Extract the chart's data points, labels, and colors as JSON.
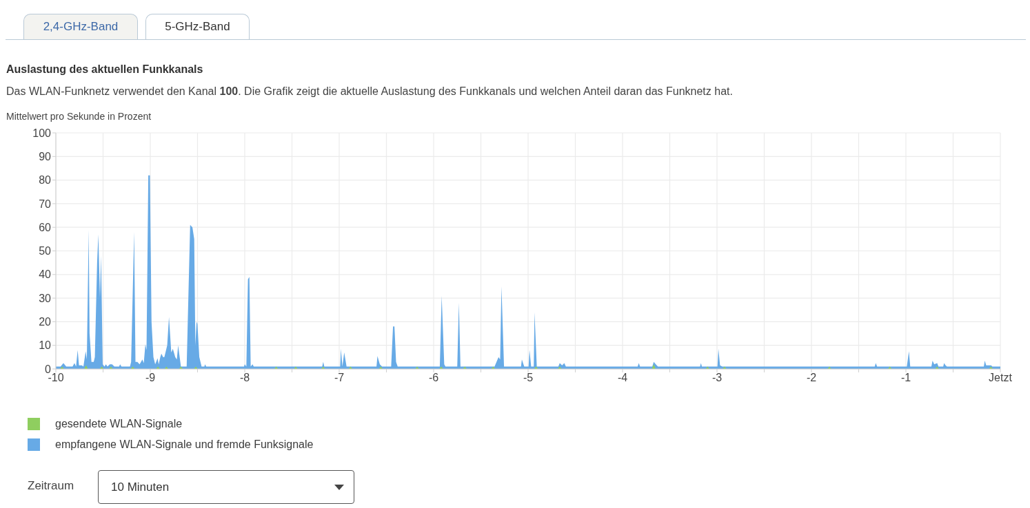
{
  "chart_data": {
    "type": "area",
    "title": "Auslastung des aktuellen Funkkanals",
    "subtitle": "Das WLAN-Funknetz verwendet den Kanal 100. Die Grafik zeigt die aktuelle Auslastung des Funkkanals und welchen Anteil daran das Funknetz hat.",
    "ylabel": "Mittelwert pro Sekunde in Prozent",
    "annotations": [
      "2,4-GHz-Band",
      "5-GHz-Band",
      "Zeitraum",
      "10 Minuten"
    ],
    "xlim": [
      -10,
      0
    ],
    "xticks": [
      -10,
      {
        "value": -9.5,
        "label": null
      },
      -9,
      {
        "value": -8.5,
        "label": null
      },
      -8,
      {
        "value": -7.5,
        "label": null
      },
      -7,
      {
        "value": -6.5,
        "label": null
      },
      -6,
      {
        "value": -5.5,
        "label": null
      },
      -5,
      {
        "value": -4.5,
        "label": null
      },
      -4,
      {
        "value": -3.5,
        "label": null
      },
      -3,
      {
        "value": -2.5,
        "label": null
      },
      -2,
      {
        "value": -1.5,
        "label": null
      },
      -1,
      {
        "value": -0.5,
        "label": null
      },
      {
        "value": 0,
        "label": "Jetzt"
      }
    ],
    "ylim": [
      0,
      100
    ],
    "yticks": [
      0,
      10,
      20,
      30,
      40,
      50,
      60,
      70,
      80,
      90,
      100
    ],
    "grid": true,
    "legend": "bottom left",
    "series": [
      {
        "name": "gesendete WLAN-Signale",
        "color": "#8fce5f",
        "x": [
          -10,
          -9.954,
          -9.934,
          -9.914,
          -9.7,
          -9.68,
          -9.66,
          -9.534,
          -9.514,
          -9.494,
          -9.437,
          -9.417,
          -9.397,
          -9.206,
          -9.186,
          -9.166,
          -8.939,
          -8.919,
          -8.899,
          -8.849,
          -8.829,
          -8.809,
          -8.696,
          -8.676,
          -8.656,
          -8.538,
          -8.518,
          -8.498,
          -7.687,
          -7.667,
          -7.647,
          -7.48,
          -7.46,
          -7.44,
          -7.19,
          -7.17,
          -7.15,
          -6.9,
          -6.88,
          -6.86,
          -6.58,
          -6.56,
          -6.54,
          -6.195,
          -6.175,
          -6.155,
          -5.94,
          -5.92,
          -5.9,
          -5.69,
          -5.67,
          -5.65,
          -5.39,
          -5.37,
          -5.35,
          -4.935,
          -4.915,
          -4.895,
          -4.685,
          -4.665,
          -4.645,
          -3.69,
          -3.67,
          -3.65,
          -3.12,
          -3.1,
          -3.08,
          -2.94,
          -2.92,
          -2.9,
          -1.83,
          -1.81,
          -1.79,
          -1.19,
          -1.17,
          -1.15,
          -0.69,
          -0.67,
          -0.65,
          -0.12,
          -0.1,
          -0.08,
          0
        ],
        "values": [
          0,
          0,
          1,
          0,
          0,
          1.5,
          0,
          0,
          1,
          0,
          0,
          1,
          0,
          0,
          1,
          0,
          0,
          1,
          0,
          0,
          1,
          0,
          0,
          1,
          0,
          0,
          1,
          0,
          0,
          1,
          0,
          0,
          1,
          0,
          0,
          1,
          0,
          0,
          1,
          0,
          0,
          1,
          0,
          0,
          1,
          0,
          0,
          1,
          0,
          0,
          1,
          0,
          0,
          1,
          0,
          0,
          1,
          0,
          0,
          1,
          0,
          0,
          2,
          0,
          0,
          1,
          0,
          0,
          1,
          0,
          0,
          1,
          0,
          0,
          1,
          0,
          0,
          1,
          0,
          0,
          1,
          0,
          0
        ]
      },
      {
        "name": "empfangene WLAN-Signale und fremde Funksignale",
        "color": "#67aae6",
        "x": [
          -10,
          -9.95,
          -9.92,
          -9.89,
          -9.823,
          -9.803,
          -9.786,
          -9.769,
          -9.755,
          -9.725,
          -9.708,
          -9.684,
          -9.672,
          -9.652,
          -9.643,
          -9.623,
          -9.599,
          -9.587,
          -9.563,
          -9.55,
          -9.533,
          -9.521,
          -9.504,
          -9.485,
          -9.47,
          -9.453,
          -9.429,
          -9.405,
          -9.38,
          -9.33,
          -9.32,
          -9.305,
          -9.215,
          -9.203,
          -9.171,
          -9.157,
          -9.137,
          -9.113,
          -9.084,
          -9.069,
          -9.052,
          -9.04,
          -9.021,
          -9.004,
          -8.987,
          -8.967,
          -8.948,
          -8.923,
          -8.911,
          -8.894,
          -8.882,
          -8.865,
          -8.851,
          -8.821,
          -8.802,
          -8.778,
          -8.761,
          -8.736,
          -8.719,
          -8.705,
          -8.676,
          -8.615,
          -8.578,
          -8.554,
          -8.535,
          -8.523,
          -8.51,
          -8.501,
          -8.481,
          -8.457,
          -8.428,
          -8.42,
          -8.408,
          -8.008,
          -8.0,
          -7.983,
          -7.966,
          -7.951,
          -7.937,
          -7.917,
          -7.905,
          -7.18,
          -7.169,
          -7.158,
          -6.99,
          -6.982,
          -6.966,
          -6.947,
          -6.922,
          -6.605,
          -6.595,
          -6.57,
          -6.546,
          -6.45,
          -6.43,
          -6.415,
          -6.398,
          -6.381,
          -5.935,
          -5.915,
          -5.888,
          -5.875,
          -5.75,
          -5.733,
          -5.716,
          -5.355,
          -5.345,
          -5.313,
          -5.296,
          -5.282,
          -5.255,
          -5.075,
          -5.066,
          -5.041,
          -4.995,
          -4.985,
          -4.968,
          -4.94,
          -4.932,
          -4.908,
          -4.68,
          -4.665,
          -4.64,
          -4.617,
          -4.6,
          -3.84,
          -3.828,
          -3.815,
          -3.685,
          -3.67,
          -3.638,
          -3.625,
          -3.18,
          -3.17,
          -3.16,
          -2.995,
          -2.985,
          -2.968,
          -2.944,
          -1.33,
          -1.319,
          -1.305,
          -0.99,
          -0.968,
          -0.954,
          -0.73,
          -0.718,
          -0.7,
          -0.669,
          -0.655,
          -0.605,
          -0.596,
          -0.58,
          -0.565,
          -0.175,
          -0.165,
          -0.15,
          -0.097,
          -0.085,
          0
        ],
        "values": [
          1,
          1,
          2.5,
          1,
          1,
          2.5,
          1,
          8,
          1.5,
          1.5,
          1,
          7.5,
          4,
          59,
          15,
          3,
          3,
          5,
          45,
          57,
          30,
          48,
          2,
          1,
          2,
          1,
          2,
          2,
          1,
          1,
          2,
          1,
          1,
          3,
          58,
          3,
          3,
          2,
          4,
          2.5,
          10.5,
          8,
          82,
          82,
          20,
          5,
          2,
          4.5,
          2,
          5,
          6.5,
          5,
          5,
          10,
          22,
          7,
          8.5,
          5,
          4,
          10,
          1,
          1,
          61,
          60,
          55,
          10,
          20,
          19,
          5,
          1,
          1,
          2,
          1,
          1,
          2,
          1,
          38,
          39,
          1,
          2,
          1,
          1,
          3,
          1,
          1,
          8.5,
          1,
          7,
          1,
          1,
          5.5,
          2,
          1,
          1,
          18,
          18,
          3,
          1,
          1,
          31,
          2,
          1,
          1,
          28,
          1,
          1,
          2,
          5,
          4,
          35,
          1,
          1,
          4,
          1,
          1,
          8,
          1,
          1,
          24,
          1,
          1,
          2.5,
          1.5,
          2.5,
          1,
          1,
          2.5,
          1,
          1,
          3,
          1.5,
          1,
          1,
          2.5,
          1,
          1,
          8.5,
          1.5,
          1,
          1,
          2.5,
          1,
          1,
          7.5,
          1,
          1,
          3.5,
          2,
          2.5,
          1,
          1,
          2.5,
          1.5,
          1,
          1,
          3.5,
          1.5,
          1.5,
          1,
          1
        ]
      }
    ]
  }
}
